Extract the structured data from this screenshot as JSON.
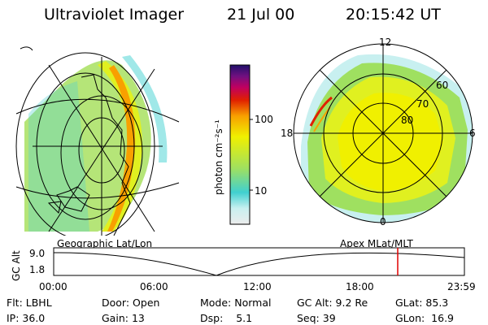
{
  "header": {
    "title": "Ultraviolet Imager",
    "date": "21 Jul 00",
    "time": "20:15:42 UT"
  },
  "left_panel": {
    "caption": "Geographic Lat/Lon"
  },
  "colorbar": {
    "unit_label": "photon cm⁻²s⁻¹",
    "ticks": [
      "100",
      "10"
    ],
    "scale": "log",
    "colors": [
      "#e8e8e8",
      "#c8f0f0",
      "#40d0d0",
      "#9fe060",
      "#d8f020",
      "#f0f000",
      "#f8a000",
      "#e02000",
      "#c00060",
      "#701080",
      "#20106a"
    ]
  },
  "right_panel": {
    "caption": "Apex MLat/MLT",
    "mlt_labels": {
      "top": "12",
      "left": "18",
      "right": "6",
      "bottom": "0"
    },
    "lat_labels": [
      "60",
      "70",
      "80"
    ]
  },
  "altitude_chart": {
    "y_axis_label": "GC Alt",
    "y_ticks": [
      "9.0",
      "1.8"
    ],
    "x_ticks": [
      "00:00",
      "06:00",
      "12:00",
      "18:00",
      "23:59"
    ],
    "marker_time": "20:15",
    "line_color": "#000000",
    "marker_color": "#e00000"
  },
  "footer": {
    "row1": [
      {
        "label": "Flt:",
        "value": "LBHL"
      },
      {
        "label": "Door:",
        "value": "Open"
      },
      {
        "label": "Mode:",
        "value": "Normal"
      },
      {
        "label": "GC Alt:",
        "value": "9.2 Re"
      },
      {
        "label": "GLat:",
        "value": "85.3"
      }
    ],
    "row2": [
      {
        "label": "IP:",
        "value": "36.0"
      },
      {
        "label": "Gain:",
        "value": "13"
      },
      {
        "label": "Dsp:",
        "value": "5.1"
      },
      {
        "label": "Seq:",
        "value": "39"
      },
      {
        "label": "GLon:",
        "value": "16.9"
      }
    ]
  }
}
